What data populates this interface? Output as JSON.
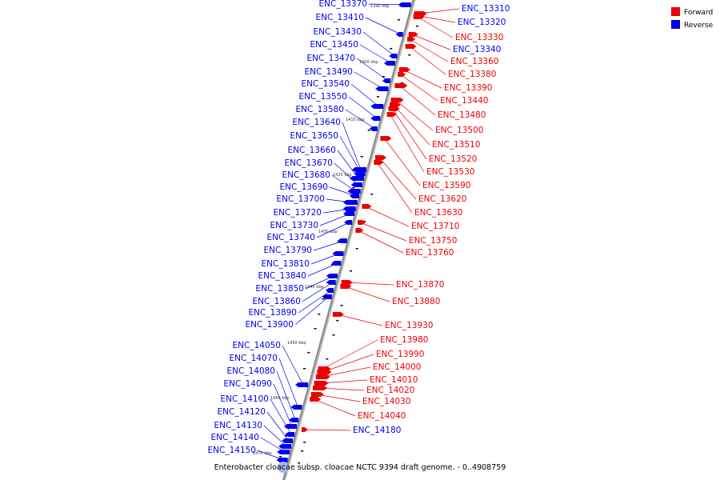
{
  "caption": "Enterobacter cloacae subsp. cloacae NCTC 9394 draft genome. - 0..4908759",
  "legend": [
    {
      "label": "Forward",
      "color": "#ee0000"
    },
    {
      "label": "Reverse",
      "color": "#0000ee"
    }
  ],
  "colors": {
    "forward": "#ee0000",
    "reverse": "#0000ee",
    "backbone": "#888888"
  },
  "ticks": [
    "1390 kbp",
    "1400 kbp",
    "1410 kbp",
    "1420 kbp",
    "1430 kbp",
    "1440 kbp",
    "1450 kbp",
    "1460 kbp",
    "1470 kbp"
  ],
  "reverse_genes": [
    "ENC_13370",
    "ENC_13410",
    "ENC_13430",
    "ENC_13450",
    "ENC_13470",
    "ENC_13490",
    "ENC_13540",
    "ENC_13550",
    "ENC_13580",
    "ENC_13640",
    "ENC_13650",
    "ENC_13660",
    "ENC_13670",
    "ENC_13680",
    "ENC_13690",
    "ENC_13700",
    "ENC_13720",
    "ENC_13730",
    "ENC_13740",
    "ENC_13790",
    "ENC_13810",
    "ENC_13840",
    "ENC_13850",
    "ENC_13860",
    "ENC_13890",
    "ENC_13900",
    "ENC_14050",
    "ENC_14070",
    "ENC_14080",
    "ENC_14090",
    "ENC_14100",
    "ENC_14120",
    "ENC_14130",
    "ENC_14140",
    "ENC_14150"
  ],
  "forward_genes": [
    "ENC_13310",
    "ENC_13320",
    "ENC_13330",
    "ENC_13340",
    "ENC_13360",
    "ENC_13380",
    "ENC_13390",
    "ENC_13440",
    "ENC_13480",
    "ENC_13500",
    "ENC_13510",
    "ENC_13520",
    "ENC_13530",
    "ENC_13590",
    "ENC_13620",
    "ENC_13630",
    "ENC_13710",
    "ENC_13750",
    "ENC_13760",
    "ENC_13870",
    "ENC_13880",
    "ENC_13930",
    "ENC_13980",
    "ENC_13990",
    "ENC_14000",
    "ENC_14010",
    "ENC_14020",
    "ENC_14030",
    "ENC_14040",
    "ENC_14180"
  ]
}
